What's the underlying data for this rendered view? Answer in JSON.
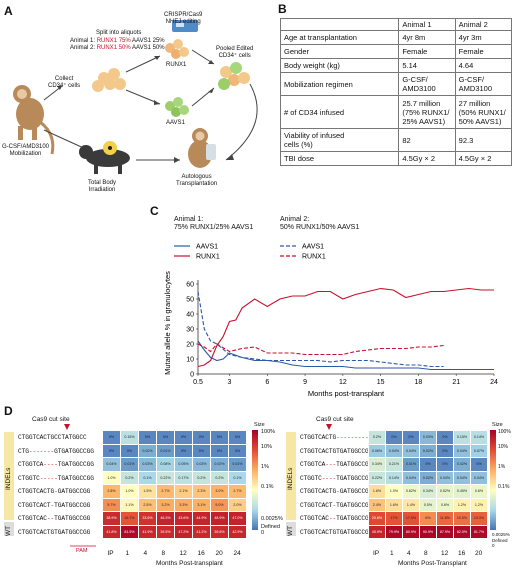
{
  "panels": {
    "a": "A",
    "b": "B",
    "c": "C",
    "d": "D"
  },
  "panelA": {
    "collect": "Collect\nCD34⁺ cells",
    "split_title": "Split into aliquots",
    "split_a1_prefix": "Animal 1: ",
    "split_a1_runx": "RUNX1 75%",
    "split_a1_suffix": " AAVS1 25%",
    "split_a2_prefix": "Animal 2: ",
    "split_a2_runx": "RUNX1 50%",
    "split_a2_suffix": " AAVS1 50%",
    "crispr": "CRISPR/Cas9\nNHEJ editing",
    "runx1": "RUNX1",
    "aavs1": "AAVS1",
    "pooled": "Pooled Edited\nCD34⁺ cells",
    "mobilization": "G-CSF/AMD3100\nMobilization",
    "tbi": "Total Body\nIrradiation",
    "auto": "Autologous\nTransplantation",
    "colors": {
      "red": "#c8102e",
      "cells": "#f3c98b",
      "arrow": "#444"
    }
  },
  "tableB": {
    "header": [
      "",
      "Animal 1",
      "Animal 2"
    ],
    "rows": [
      [
        "Age at transplantation",
        "4yr 8m",
        "4yr 3m"
      ],
      [
        "Gender",
        "Female",
        "Female"
      ],
      [
        "Body weight (kg)",
        "5.14",
        "4.64"
      ],
      [
        "Mobilization regimen",
        "G-CSF/\nAMD3100",
        "G-CSF/\nAMD3100"
      ],
      [
        "# of CD34 infused",
        "25.7 million\n(75% RUNX1/\n25% AAVS1)",
        "27 million\n(50% RUNX1/\n50% AAVS1)"
      ],
      [
        "Viability of infused\ncells (%)",
        "82",
        "92.3"
      ],
      [
        "TBI dose",
        "4.5Gy × 2",
        "4.5Gy × 2"
      ]
    ]
  },
  "chart_data": {
    "type": "line",
    "xlabel": "Months post-transplant",
    "ylabel": "Mutant allele % in granulocytes",
    "xticks": [
      "0.5",
      "3",
      "6",
      "9",
      "12",
      "15",
      "18",
      "21",
      "24"
    ],
    "yticks": [
      "0",
      "10",
      "20",
      "30",
      "40",
      "50",
      "60"
    ],
    "xlim": [
      0.5,
      24
    ],
    "ylim": [
      0,
      60
    ],
    "legend": {
      "animal1": "Animal 1:\n75% RUNX1/25% AAVS1",
      "animal2": "Animal 2:\n50% RUNX1/50% AAVS1",
      "aavs1": "AAVS1",
      "runx1": "RUNX1"
    },
    "series": [
      {
        "name": "AAVS1",
        "animal": "Animal 1",
        "color": "#2a5aa8",
        "dash": false,
        "x": [
          0.5,
          1,
          1.5,
          2,
          2.5,
          3,
          4,
          5,
          6,
          7,
          8,
          9,
          10,
          11,
          12,
          13,
          14,
          15,
          16,
          17,
          18,
          19,
          20,
          21,
          22,
          23,
          24
        ],
        "y": [
          22,
          16,
          11,
          9,
          10,
          14,
          11,
          9,
          9,
          8,
          6,
          5,
          5,
          5,
          5,
          4,
          4,
          4,
          4,
          4,
          4,
          3,
          3,
          3,
          3,
          3,
          3
        ]
      },
      {
        "name": "RUNX1",
        "animal": "Animal 1",
        "color": "#c8102e",
        "dash": false,
        "x": [
          0.5,
          1,
          1.5,
          2,
          2.5,
          3,
          3.5,
          4,
          5,
          6,
          7,
          8,
          9,
          10,
          11,
          12,
          13,
          14,
          15,
          16,
          17,
          18,
          19,
          20,
          21,
          22,
          23,
          24
        ],
        "y": [
          5,
          6,
          9,
          19,
          25,
          35,
          36,
          44,
          50,
          45,
          50,
          52,
          52,
          55,
          55,
          50,
          53,
          55,
          57,
          56,
          51,
          53,
          55,
          55,
          56,
          57,
          56,
          56
        ]
      },
      {
        "name": "AAVS1",
        "animal": "Animal 2",
        "color": "#2a5aa8",
        "dash": true,
        "x": [
          0.5,
          1,
          1.5,
          2,
          3,
          4,
          5,
          6,
          7,
          8,
          9,
          10,
          11,
          12,
          13,
          14,
          15,
          16,
          17,
          18,
          19,
          20
        ],
        "y": [
          55,
          30,
          22,
          20,
          13,
          11,
          10,
          9,
          9,
          9,
          9,
          9,
          8,
          9,
          9,
          9,
          8,
          7,
          6,
          6,
          5,
          5
        ]
      },
      {
        "name": "RUNX1",
        "animal": "Animal 2",
        "color": "#c8102e",
        "dash": true,
        "x": [
          0.5,
          1,
          1.5,
          2,
          3,
          4,
          5,
          6,
          7,
          8,
          9,
          10,
          11,
          12,
          13,
          14,
          15,
          16,
          17,
          18,
          19,
          20
        ],
        "y": [
          20,
          18,
          15,
          20,
          15,
          17,
          18,
          14,
          14,
          14,
          13,
          13,
          13,
          13,
          15,
          16,
          17,
          17,
          17,
          18,
          18,
          19
        ]
      }
    ]
  },
  "panelD": {
    "cut_left": "Cas9 cut site",
    "cut_right": "Cas9 cut site",
    "indels": "INDELs",
    "wt": "WT",
    "pam": "PAM",
    "xlabel_left": "Months Post-transplant",
    "xlabel_right": "Months Post-Transplant",
    "x_left": [
      "IP",
      "1",
      "4",
      "8",
      "12",
      "16",
      "20",
      "24"
    ],
    "x_right": [
      "IP",
      "1",
      "4",
      "8",
      "12",
      "16",
      "20"
    ],
    "legend_title": "Size",
    "legend_ticks": [
      "100%",
      "10%",
      "1%",
      "0.1%",
      "0.0025%"
    ],
    "legend_defined": "Defined 0",
    "seqs_left": [
      {
        "a": "CTGGTCACTGCC",
        "d": "",
        "b": "TATGGCC"
      },
      {
        "a": "CTG",
        "d": "-------",
        "b": "GTGATGGCCGG"
      },
      {
        "a": "CTGGTCA",
        "d": "----",
        "b": "TGATGGCCGG"
      },
      {
        "a": "CTGGTC",
        "d": "-----",
        "b": "TGATGGCCGG"
      },
      {
        "a": "CTGGTCACTG",
        "d": "-",
        "b": "GATGGCCGG"
      },
      {
        "a": "CTGGTCACT",
        "d": "-",
        "b": "TGATGGCCGG"
      },
      {
        "a": "CTGGTCAC",
        "d": "--",
        "b": "TGATGGCCGG"
      },
      {
        "a": "CTGGTCACTGTGATGGCCGG",
        "d": "",
        "b": ""
      }
    ],
    "seqs_right": [
      {
        "a": "CTGGTCACTG",
        "d": "----------",
        "b": ""
      },
      {
        "a": "CTGGTCACTGTGATGGCCGG",
        "d": "",
        "b": ""
      },
      {
        "a": "CTGGTCA",
        "d": "---",
        "b": "TGATGGCCGG"
      },
      {
        "a": "CTGGTC",
        "d": "----",
        "b": "TGATGGCCGG"
      },
      {
        "a": "CTGGTCACTG",
        "d": "-",
        "b": "GATGGCCGG"
      },
      {
        "a": "CTGGTCACT",
        "d": "-",
        "b": "TGATGGCCGG"
      },
      {
        "a": "CTGGTCAC",
        "d": "--",
        "b": "TGATGGCCGG"
      },
      {
        "a": "CTGGTCACTGTGATGGCCGG",
        "d": "",
        "b": ""
      }
    ],
    "heat_left": [
      [
        "0%",
        "0.15%",
        "0%",
        "0%",
        "0%",
        "0%",
        "0%",
        "0%"
      ],
      [
        "0%",
        "0%",
        "0.02%",
        "0.01%",
        "0%",
        "0%",
        "0%",
        "0%"
      ],
      [
        "0.04%",
        "0.01%",
        "0.03%",
        "0.08%",
        "0.05%",
        "0.03%",
        "0.02%",
        "0.01%"
      ],
      [
        "1.0%",
        "0.2%",
        "0.1%",
        "0.22%",
        "0.17%",
        "0.2%",
        "0.2%",
        "0.1%"
      ],
      [
        "2.8%",
        "1.0%",
        "1.5%",
        "2.7%",
        "2.1%",
        "2.3%",
        "3.0%",
        "2.7%"
      ],
      [
        "5.7%",
        "1.1%",
        "2.5%",
        "3.2%",
        "3.3%",
        "3.1%",
        "5.0%",
        "2.0%"
      ],
      [
        "38.9%",
        "16.7%",
        "33.6%",
        "46.3%",
        "43.6%",
        "44.9%",
        "48.9%",
        "47.0%"
      ],
      [
        "41.8%",
        "81.5%",
        "41.9%",
        "39.5%",
        "47.2%",
        "41.2%",
        "39.8%",
        "42.9%"
      ]
    ],
    "heat_right": [
      [
        "0.2%",
        "0%",
        "0%",
        "0.03%",
        "0%",
        "0.15%",
        "0.14%"
      ],
      [
        "0.06%",
        "0.04%",
        "0.04%",
        "0.02%",
        "0%",
        "0.04%",
        "0.07%"
      ],
      [
        "0.34%",
        "0.21%",
        "0.01%",
        "0%",
        "0%",
        "0.02%",
        "0%"
      ],
      [
        "0.22%",
        "0.14%",
        "0.04%",
        "0.02%",
        "0.04%",
        "0.04%",
        "0.04%"
      ],
      [
        "1.6%",
        "1.0%",
        "0.62%",
        "0.34%",
        "0.52%",
        "0.45%",
        "0.6%"
      ],
      [
        "2.4%",
        "1.6%",
        "1.4%",
        "0.5%",
        "0.6%",
        "1.2%",
        "1.2%"
      ],
      [
        "20.8%",
        "17%",
        "17.5%",
        "6%",
        "11.8%",
        "10.0%",
        "13.3%"
      ],
      [
        "45.9%",
        "79.9%",
        "80.9%",
        "90.9%",
        "87.9%",
        "82.0%",
        "81.7%"
      ]
    ]
  }
}
